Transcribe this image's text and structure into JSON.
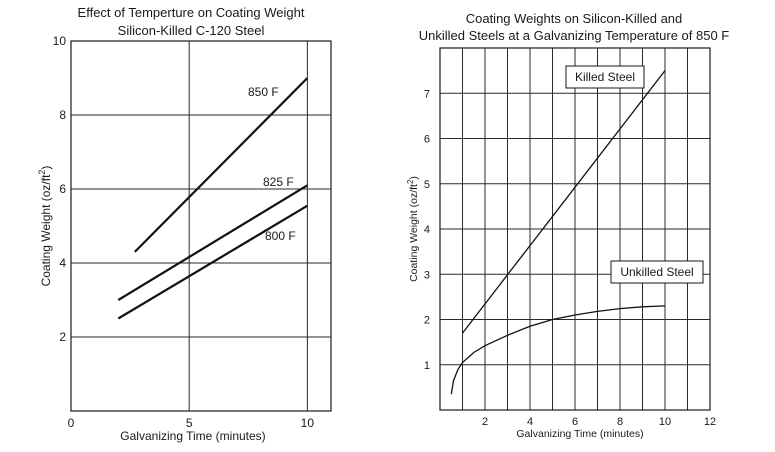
{
  "chart_data": [
    {
      "type": "line",
      "title": "Effect of Temperture on Coating Weight",
      "subtitle": "Silicon-Killed C-120 Steel",
      "xlabel": "Galvanizing Time (minutes)",
      "ylabel": "Coating Weight (oz/ft",
      "ylabel_sup": "2",
      "ylabel_close": ")",
      "xlim": [
        0,
        11
      ],
      "ylim": [
        0,
        10
      ],
      "xticks": [
        0,
        5,
        10
      ],
      "xtick_labels": [
        "0",
        "5",
        "10"
      ],
      "yticks": [
        2,
        4,
        6,
        8,
        10
      ],
      "ytick_labels": [
        "2",
        "4",
        "6",
        "8",
        "10"
      ],
      "grid": true,
      "series": [
        {
          "name": "850 F",
          "x": [
            2.7,
            10
          ],
          "y": [
            4.3,
            9.0
          ]
        },
        {
          "name": "825 F",
          "x": [
            2,
            10
          ],
          "y": [
            3.0,
            6.1
          ]
        },
        {
          "name": "800 F",
          "x": [
            2,
            10
          ],
          "y": [
            2.5,
            5.55
          ]
        }
      ]
    },
    {
      "type": "line",
      "title": "Coating Weights on Silicon-Killed and",
      "subtitle": "Unkilled Steels at a Galvanizing Temperature of 850 F",
      "xlabel": "Galvanizing Time (minutes)",
      "ylabel": "Coating Weight (oz/ft",
      "ylabel_sup": "2",
      "ylabel_close": ")",
      "xlim": [
        0,
        12
      ],
      "ylim": [
        0,
        8
      ],
      "xticks": [
        2,
        4,
        6,
        8,
        10,
        12
      ],
      "xtick_labels": [
        "2",
        "4",
        "6",
        "8",
        "10",
        "12"
      ],
      "yticks": [
        1,
        2,
        3,
        4,
        5,
        6,
        7
      ],
      "ytick_labels": [
        "1",
        "2",
        "3",
        "4",
        "5",
        "6",
        "7"
      ],
      "grid": true,
      "series": [
        {
          "name": "Killed Steel",
          "x": [
            1,
            10
          ],
          "y": [
            1.7,
            7.5
          ]
        },
        {
          "name": "Unkilled Steel",
          "x": [
            0.5,
            0.6,
            0.8,
            1,
            1.5,
            2,
            3,
            4,
            5,
            6,
            7,
            8,
            9,
            10
          ],
          "y": [
            0.35,
            0.65,
            0.9,
            1.05,
            1.27,
            1.42,
            1.65,
            1.85,
            2.0,
            2.1,
            2.18,
            2.24,
            2.28,
            2.3
          ]
        }
      ]
    }
  ]
}
